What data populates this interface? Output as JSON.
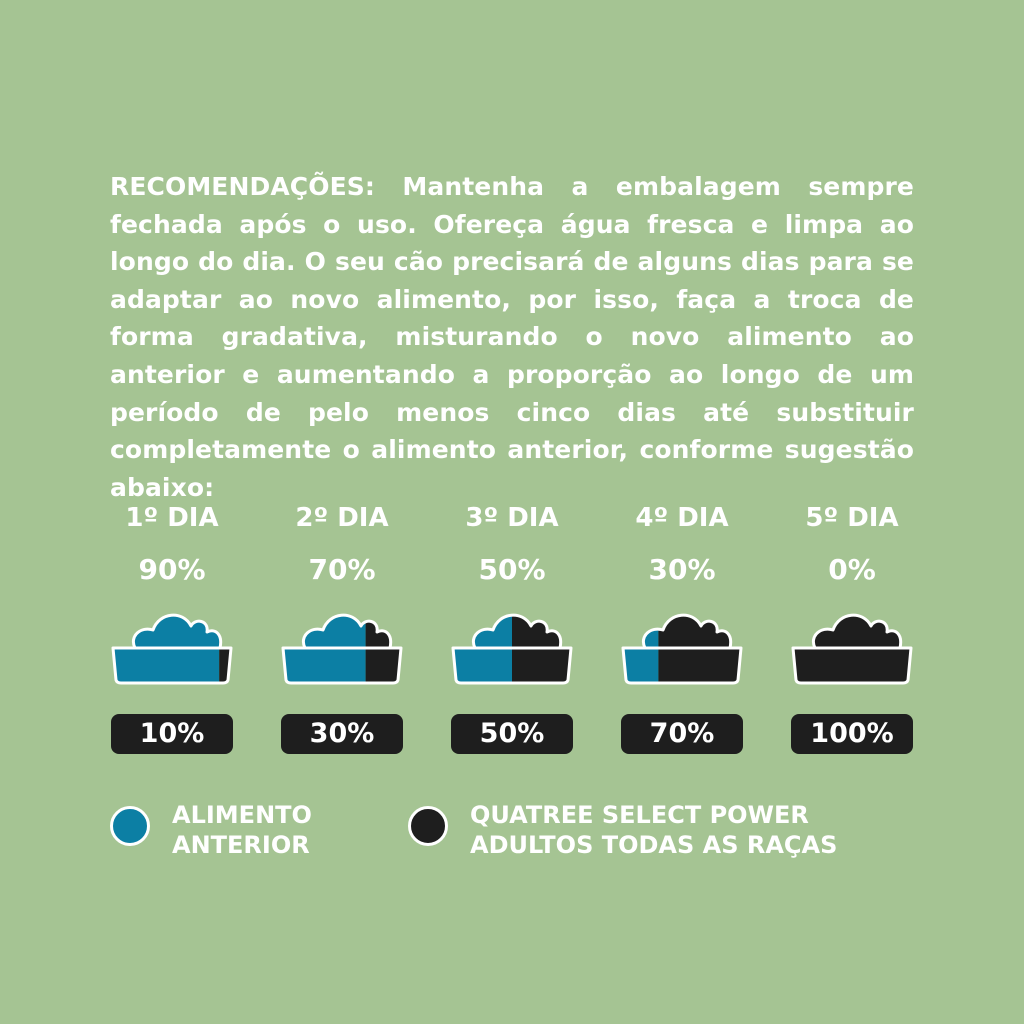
{
  "intro": {
    "text": "RECOMENDAÇÕES: Mantenha a embalagem sempre fechada após o uso. Ofereça água fresca e limpa ao longo do dia. O seu cão precisará de alguns dias para se adaptar ao novo alimento, por isso, faça a troca de forma gradativa, misturando o novo alimento ao anterior e aumentando a proporção ao longo de um período de pelo menos cinco dias até substituir completamente o alimento anterior, conforme sugestão abaixo:"
  },
  "colors": {
    "background": "#a5c493",
    "previous_food": "#0c7fa4",
    "new_food": "#1e1e1e",
    "text": "#ffffff"
  },
  "days": [
    {
      "label": "1º DIA",
      "previous_percent": "90%",
      "new_percent": "10%",
      "new_fraction": 0.1
    },
    {
      "label": "2º DIA",
      "previous_percent": "70%",
      "new_percent": "30%",
      "new_fraction": 0.3
    },
    {
      "label": "3º DIA",
      "previous_percent": "50%",
      "new_percent": "50%",
      "new_fraction": 0.5
    },
    {
      "label": "4º DIA",
      "previous_percent": "30%",
      "new_percent": "70%",
      "new_fraction": 0.7
    },
    {
      "label": "5º DIA",
      "previous_percent": "0%",
      "new_percent": "100%",
      "new_fraction": 1.0
    }
  ],
  "legend": {
    "previous": {
      "line1": "ALIMENTO",
      "line2": "ANTERIOR"
    },
    "new": {
      "line1": "QUATREE SELECT POWER",
      "line2": "ADULTOS TODAS AS RAÇAS"
    }
  }
}
